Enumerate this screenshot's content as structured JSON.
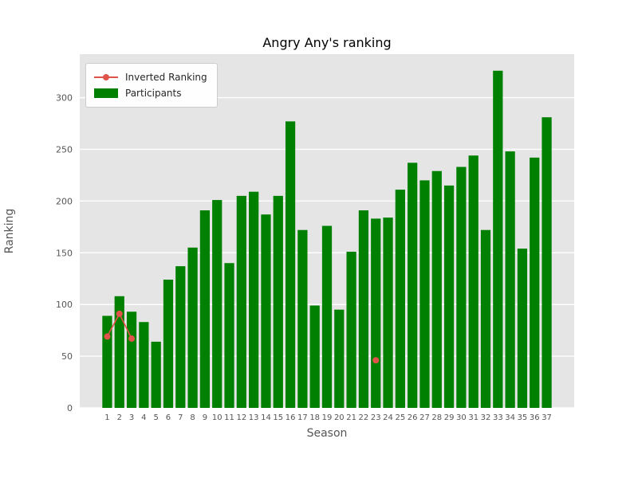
{
  "figure": {
    "title": "Angry Any's ranking",
    "xlabel": "Season",
    "ylabel": "Ranking"
  },
  "legend": {
    "items": [
      {
        "label": "Inverted Ranking",
        "sample": "line-with-marker",
        "color": "#e0534b"
      },
      {
        "label": "Participants",
        "sample": "patch",
        "color": "#008000"
      }
    ]
  },
  "chart_data": {
    "type": "bar",
    "title": "Angry Any's ranking",
    "xlabel": "Season",
    "ylabel": "Ranking",
    "categories": [
      "1",
      "2",
      "3",
      "4",
      "5",
      "6",
      "7",
      "8",
      "9",
      "10",
      "11",
      "12",
      "13",
      "14",
      "15",
      "16",
      "17",
      "18",
      "19",
      "20",
      "21",
      "22",
      "23",
      "24",
      "25",
      "26",
      "27",
      "28",
      "29",
      "30",
      "31",
      "32",
      "33",
      "34",
      "35",
      "36",
      "37"
    ],
    "series": [
      {
        "name": "Participants",
        "type": "bar",
        "color": "#008000",
        "values": [
          89,
          108,
          93,
          83,
          64,
          124,
          137,
          155,
          191,
          201,
          140,
          205,
          209,
          187,
          205,
          277,
          172,
          99,
          176,
          95,
          151,
          191,
          183,
          184,
          211,
          237,
          220,
          229,
          215,
          233,
          244,
          172,
          326,
          248,
          154,
          242,
          281
        ]
      },
      {
        "name": "Inverted Ranking",
        "type": "line",
        "color": "#e0534b",
        "values": [
          69,
          91,
          67,
          null,
          null,
          null,
          null,
          null,
          null,
          null,
          null,
          null,
          null,
          null,
          null,
          null,
          null,
          null,
          null,
          null,
          null,
          null,
          46,
          null,
          null,
          null,
          null,
          null,
          null,
          null,
          null,
          null,
          null,
          null,
          null,
          null,
          null
        ]
      }
    ],
    "yticks": [
      0,
      50,
      100,
      150,
      200,
      250,
      300
    ],
    "ylim": [
      0,
      342
    ],
    "xlim": [
      -1.25,
      39.25
    ],
    "grid": true,
    "plot_bg": "#e5e5e5",
    "grid_color": "#ffffff",
    "tick_color": "#555555",
    "legend_position": "upper left",
    "bar_width": 0.8
  }
}
